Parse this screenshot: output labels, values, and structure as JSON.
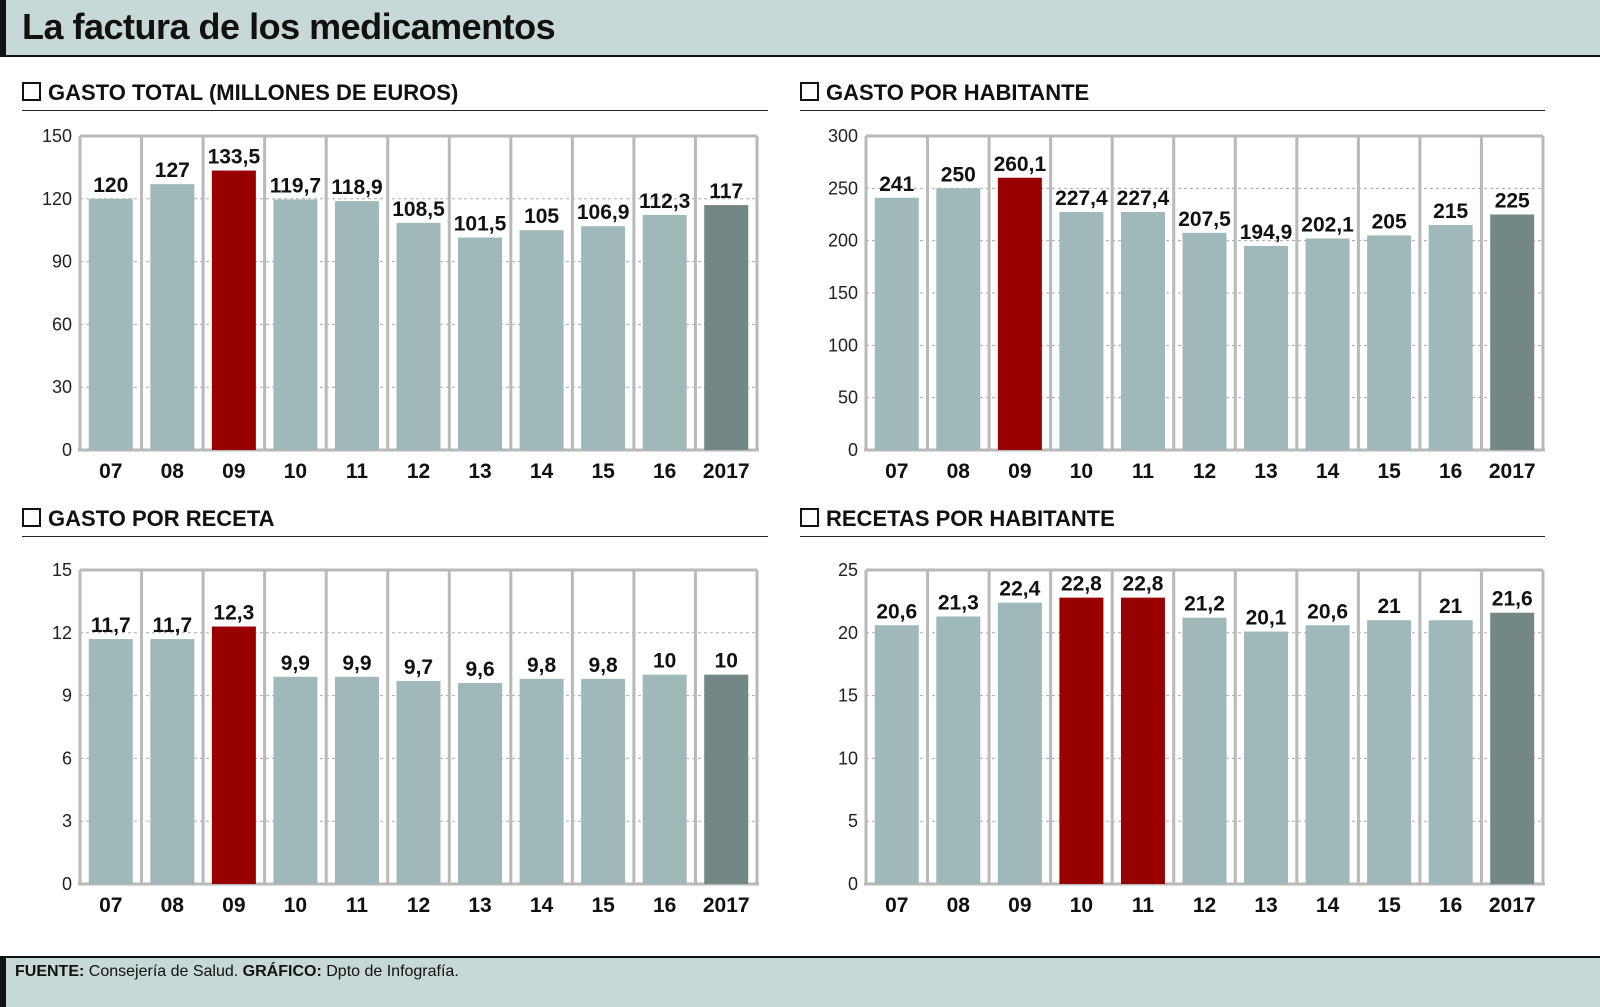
{
  "title": "La factura de los medicamentos",
  "footer": {
    "source_label": "FUENTE:",
    "source": "Consejería de Salud.",
    "graphic_label": "GRÁFICO:",
    "graphic": "Dpto de Infografía."
  },
  "colors": {
    "bar": "#9fb8b9",
    "highlight": "#990000",
    "current": "#738785",
    "grid": "#b9b9b9"
  },
  "chart_data": [
    {
      "type": "bar",
      "title": "GASTO TOTAL (MILLONES DE EUROS)",
      "categories": [
        "07",
        "08",
        "09",
        "10",
        "11",
        "12",
        "13",
        "14",
        "15",
        "16",
        "2017"
      ],
      "values": [
        120,
        127,
        133.5,
        119.7,
        118.9,
        108.5,
        101.5,
        105,
        106.9,
        112.3,
        117
      ],
      "labels": [
        "120",
        "127",
        "133,5",
        "119,7",
        "118,9",
        "108,5",
        "101,5",
        "105",
        "106,9",
        "112,3",
        "117"
      ],
      "ylim": [
        0,
        150
      ],
      "yticks": [
        0,
        30,
        60,
        90,
        120,
        150
      ],
      "highlight": [
        2
      ],
      "grid": true
    },
    {
      "type": "bar",
      "title": "GASTO POR HABITANTE",
      "categories": [
        "07",
        "08",
        "09",
        "10",
        "11",
        "12",
        "13",
        "14",
        "15",
        "16",
        "2017"
      ],
      "values": [
        241,
        250,
        260.1,
        227.4,
        227.4,
        207.5,
        194.9,
        202.1,
        205,
        215,
        225
      ],
      "labels": [
        "241",
        "250",
        "260,1",
        "227,4",
        "227,4",
        "207,5",
        "194,9",
        "202,1",
        "205",
        "215",
        "225"
      ],
      "ylim": [
        0,
        300
      ],
      "yticks": [
        0,
        50,
        100,
        150,
        200,
        250,
        300
      ],
      "highlight": [
        2
      ],
      "grid": true
    },
    {
      "type": "bar",
      "title": "GASTO POR RECETA",
      "categories": [
        "07",
        "08",
        "09",
        "10",
        "11",
        "12",
        "13",
        "14",
        "15",
        "16",
        "2017"
      ],
      "values": [
        11.7,
        11.7,
        12.3,
        9.9,
        9.9,
        9.7,
        9.6,
        9.8,
        9.8,
        10,
        10
      ],
      "labels": [
        "11,7",
        "11,7",
        "12,3",
        "9,9",
        "9,9",
        "9,7",
        "9,6",
        "9,8",
        "9,8",
        "10",
        "10"
      ],
      "ylim": [
        0,
        15
      ],
      "yticks": [
        0,
        3,
        6,
        9,
        12,
        15
      ],
      "highlight": [
        2
      ],
      "grid": true
    },
    {
      "type": "bar",
      "title": "RECETAS POR HABITANTE",
      "categories": [
        "07",
        "08",
        "09",
        "10",
        "11",
        "12",
        "13",
        "14",
        "15",
        "16",
        "2017"
      ],
      "values": [
        20.6,
        21.3,
        22.4,
        22.8,
        22.8,
        21.2,
        20.1,
        20.6,
        21,
        21,
        21.6
      ],
      "labels": [
        "20,6",
        "21,3",
        "22,4",
        "22,8",
        "22,8",
        "21,2",
        "20,1",
        "20,6",
        "21",
        "21",
        "21,6"
      ],
      "ylim": [
        0,
        25
      ],
      "yticks": [
        0,
        5,
        10,
        15,
        20,
        25
      ],
      "highlight": [
        3,
        4
      ],
      "grid": true
    }
  ]
}
